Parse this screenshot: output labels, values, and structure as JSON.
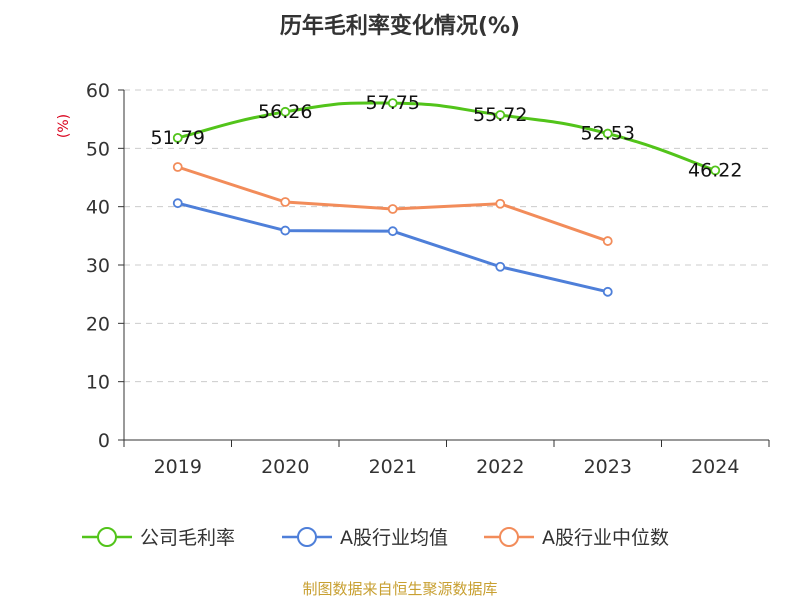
{
  "chart_data": {
    "type": "line",
    "title": "历年毛利率变化情况(%)",
    "ylabel": "(%)",
    "categories": [
      "2019",
      "2020",
      "2021",
      "2022",
      "2023",
      "2024"
    ],
    "ylim": [
      0,
      60
    ],
    "yticks": [
      0,
      10,
      20,
      30,
      40,
      50,
      60
    ],
    "grid": true,
    "legend_position": "bottom",
    "series": [
      {
        "name": "公司毛利率",
        "color": "#52c41a",
        "values": [
          51.79,
          56.26,
          57.75,
          55.72,
          52.53,
          46.22
        ],
        "show_labels": true
      },
      {
        "name": "A股行业均值",
        "color": "#4e7fd9",
        "values": [
          40.6,
          35.9,
          35.8,
          29.7,
          25.4,
          null
        ],
        "show_labels": false
      },
      {
        "name": "A股行业中位数",
        "color": "#f28c5a",
        "values": [
          46.8,
          40.8,
          39.6,
          40.5,
          34.1,
          null
        ],
        "show_labels": false
      }
    ],
    "source": "制图数据来自恒生聚源数据库",
    "source_color": "#c8a032",
    "ylabel_color": "#d9001b"
  }
}
